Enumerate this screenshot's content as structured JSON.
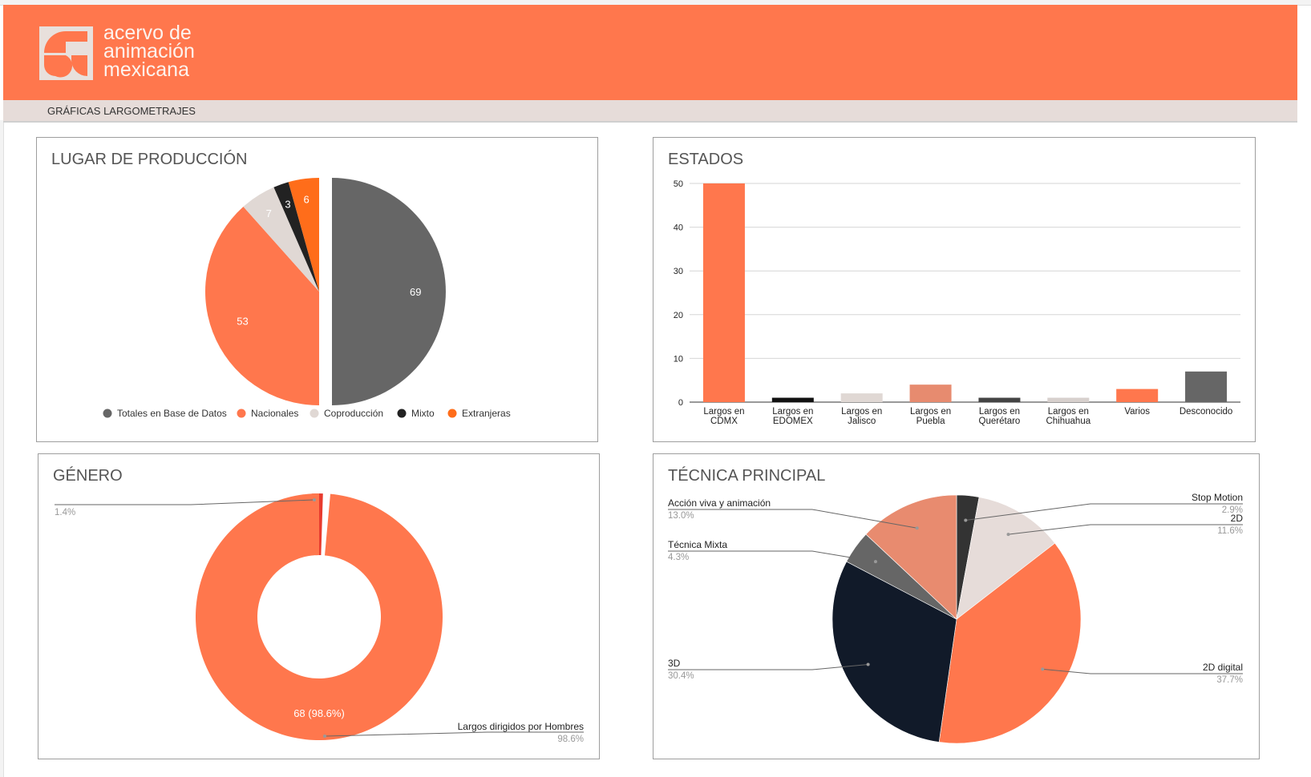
{
  "brand": {
    "lines": [
      "acervo de",
      "animación",
      "mexicana"
    ],
    "color": "#ff774d"
  },
  "subheader": {
    "title": "GRÁFICAS LARGOMETRAJES"
  },
  "chart_data": [
    {
      "id": "lugar",
      "type": "pie",
      "title": "LUGAR DE PRODUCCIÓN",
      "categories": [
        "Totales en Base de Datos",
        "Nacionales",
        "Coproducción",
        "Mixto",
        "Extranjeras"
      ],
      "values": [
        69,
        53,
        7,
        3,
        6
      ],
      "value_labels": [
        "69",
        "53",
        "7",
        "3",
        "6"
      ],
      "colors": [
        "#666666",
        "#ff774d",
        "#e0d8d4",
        "#222222",
        "#ff6d1a"
      ],
      "legend_position": "bottom"
    },
    {
      "id": "estados",
      "type": "bar",
      "title": "ESTADOS",
      "categories": [
        [
          "Largos en",
          "CDMX"
        ],
        [
          "Largos en",
          "EDOMEX"
        ],
        [
          "Largos en",
          "Jalisco"
        ],
        [
          "Largos en",
          "Puebla"
        ],
        [
          "Largos en",
          "Querétaro"
        ],
        [
          "Largos en",
          "Chihuahua"
        ],
        [
          "Varios"
        ],
        [
          "Desconocido"
        ]
      ],
      "values": [
        50,
        1,
        2,
        4,
        1,
        1,
        3,
        7
      ],
      "colors": [
        "#ff774d",
        "#111111",
        "#e0d8d4",
        "#e78b6f",
        "#444444",
        "#d7d0cd",
        "#ff774d",
        "#666666"
      ],
      "yticks": [
        "0",
        "10",
        "20",
        "30",
        "40",
        "50"
      ],
      "ylim": [
        0,
        50
      ],
      "grid": true
    },
    {
      "id": "genero",
      "type": "donut",
      "title": "GÉNERO",
      "categories": [
        "",
        "Largos dirigidos por Hombres"
      ],
      "values": [
        1,
        68
      ],
      "percent_labels": [
        "1.4%",
        "98.6%"
      ],
      "inner_label": "68 (98.6%)",
      "colors": [
        "#e83b2e",
        "#ff774d"
      ]
    },
    {
      "id": "tecnica",
      "type": "pie",
      "title": "TÉCNICA PRINCIPAL",
      "categories": [
        "Stop Motion",
        "2D",
        "2D digital",
        "3D",
        "Técnica Mixta",
        "Acción viva y animación"
      ],
      "values": [
        2.9,
        11.6,
        37.7,
        30.4,
        4.3,
        13.0
      ],
      "percent_labels": [
        "2.9%",
        "11.6%",
        "37.7%",
        "30.4%",
        "4.3%",
        "13.0%"
      ],
      "colors": [
        "#333333",
        "#e6dcd9",
        "#ff774d",
        "#111a29",
        "#666666",
        "#e88b6f"
      ]
    }
  ]
}
